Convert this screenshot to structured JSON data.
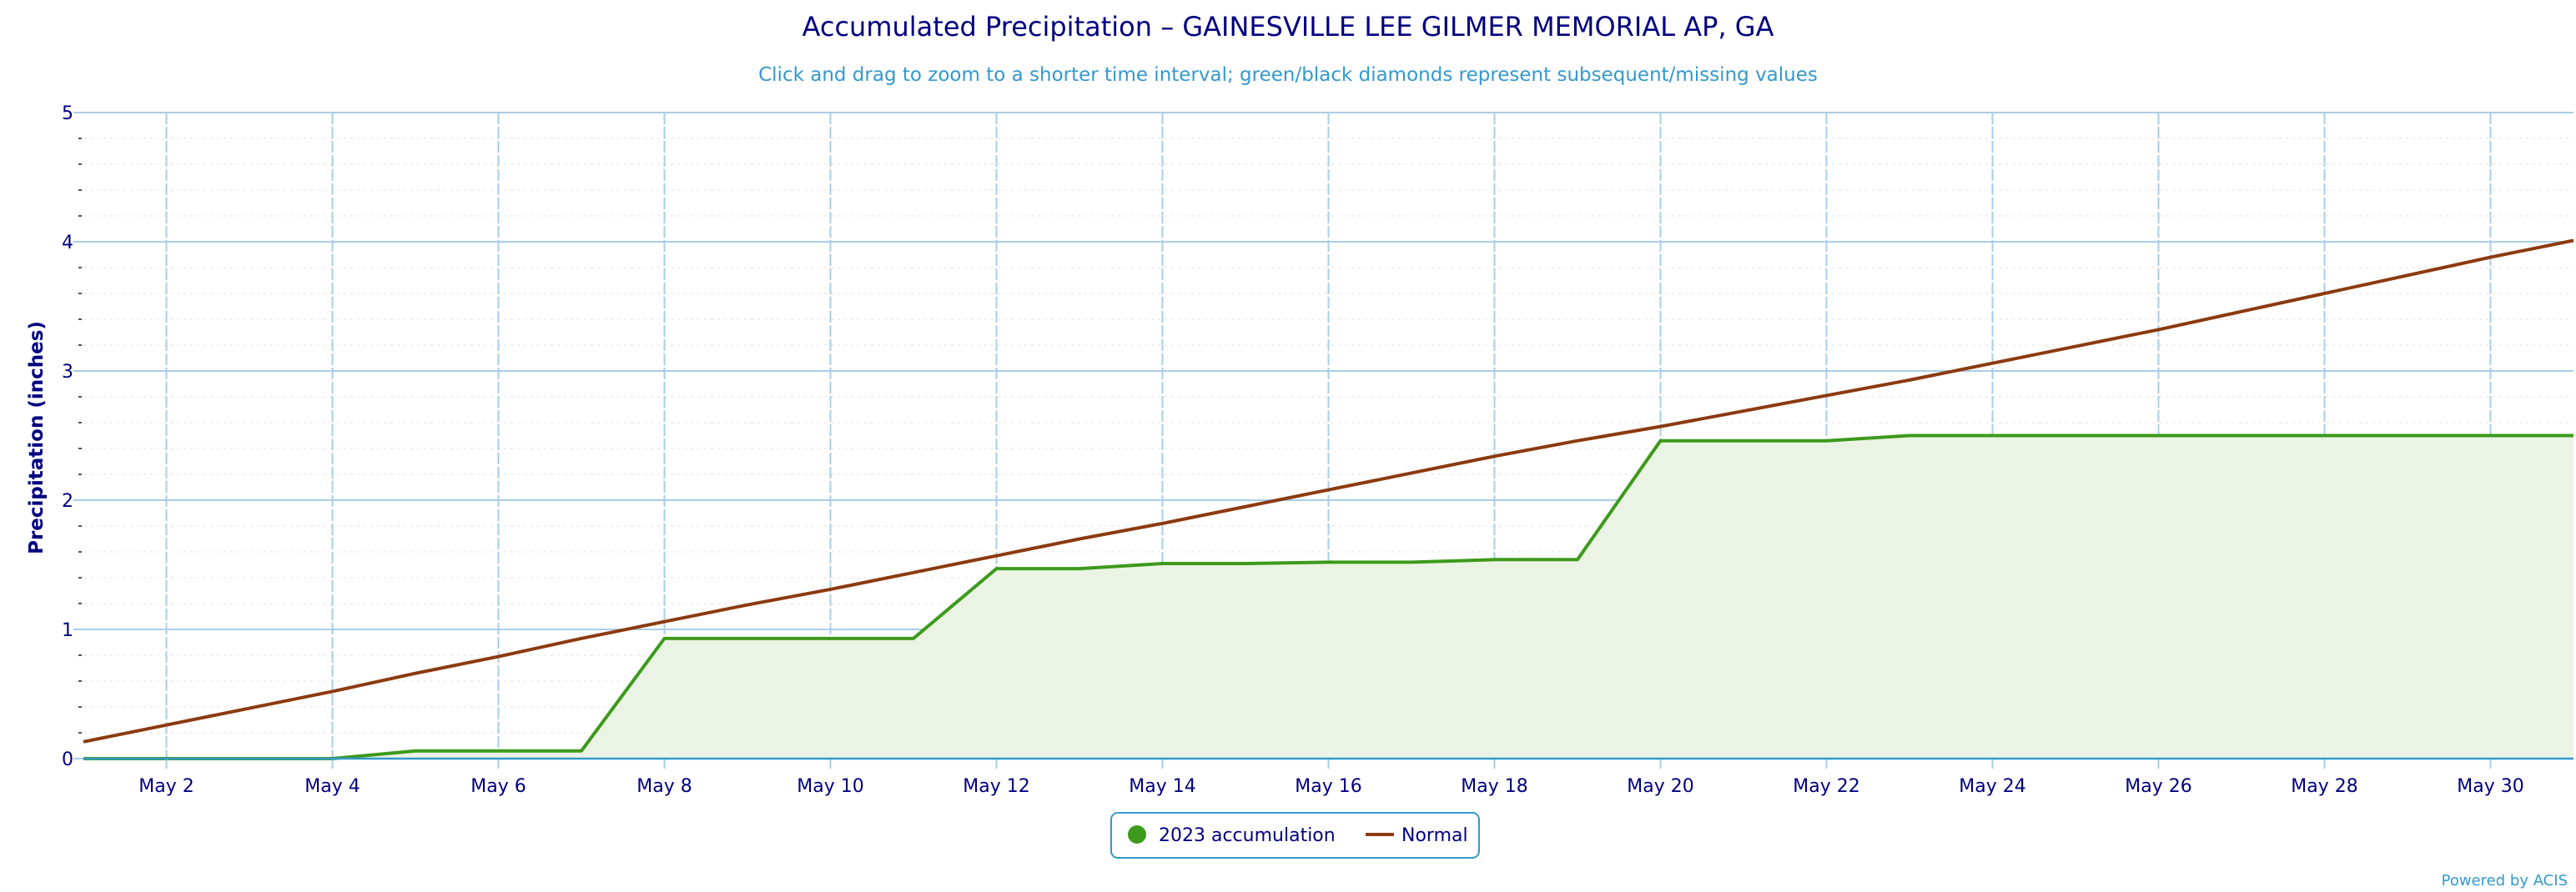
{
  "chart_data": {
    "type": "area",
    "title": "Accumulated Precipitation – GAINESVILLE LEE GILMER MEMORIAL AP, GA",
    "subtitle": "Click and drag to zoom to a shorter time interval; green/black diamonds represent subsequent/missing values",
    "ylabel": "Precipitation (inches)",
    "xlabel": "",
    "xlim": [
      "May 1",
      "May 31"
    ],
    "ylim": [
      0,
      5
    ],
    "y_ticks": [
      0,
      1,
      2,
      3,
      4,
      5
    ],
    "x_tick_labels": [
      "May 2",
      "May 4",
      "May 6",
      "May 8",
      "May 10",
      "May 12",
      "May 14",
      "May 16",
      "May 18",
      "May 20",
      "May 22",
      "May 24",
      "May 26",
      "May 28",
      "May 30"
    ],
    "grid": true,
    "legend_position": "bottom-center",
    "credit": "Powered by ACIS",
    "colors": {
      "title": "#000080",
      "subtitle": "#3399cc",
      "axis_text": "#000080",
      "grid": "#a9cde6",
      "accumulation_line": "#3d9a1c",
      "accumulation_fill": "#ebf4e4",
      "normal_line": "#8b3a0f",
      "legend_border": "#3399cc"
    },
    "x": [
      "May 1",
      "May 2",
      "May 3",
      "May 4",
      "May 5",
      "May 6",
      "May 7",
      "May 8",
      "May 9",
      "May 10",
      "May 11",
      "May 12",
      "May 13",
      "May 14",
      "May 15",
      "May 16",
      "May 17",
      "May 18",
      "May 19",
      "May 20",
      "May 21",
      "May 22",
      "May 23",
      "May 24",
      "May 25",
      "May 26",
      "May 27",
      "May 28",
      "May 29",
      "May 30",
      "May 31"
    ],
    "series": [
      {
        "name": "2023 accumulation",
        "type": "area",
        "values": [
          0.0,
          0.0,
          0.0,
          0.0,
          0.06,
          0.06,
          0.06,
          0.93,
          0.93,
          0.93,
          0.93,
          1.47,
          1.47,
          1.51,
          1.51,
          1.52,
          1.52,
          1.54,
          1.54,
          2.46,
          2.46,
          2.46,
          2.5,
          2.5,
          2.5,
          2.5,
          2.5,
          2.5,
          2.5,
          2.5,
          2.5
        ]
      },
      {
        "name": "Normal",
        "type": "line",
        "values": [
          0.13,
          0.26,
          0.39,
          0.52,
          0.66,
          0.79,
          0.93,
          1.06,
          1.19,
          1.31,
          1.44,
          1.57,
          1.7,
          1.82,
          1.95,
          2.08,
          2.21,
          2.34,
          2.46,
          2.57,
          2.69,
          2.81,
          2.93,
          3.06,
          3.19,
          3.32,
          3.46,
          3.6,
          3.74,
          3.88,
          4.01
        ]
      }
    ]
  }
}
